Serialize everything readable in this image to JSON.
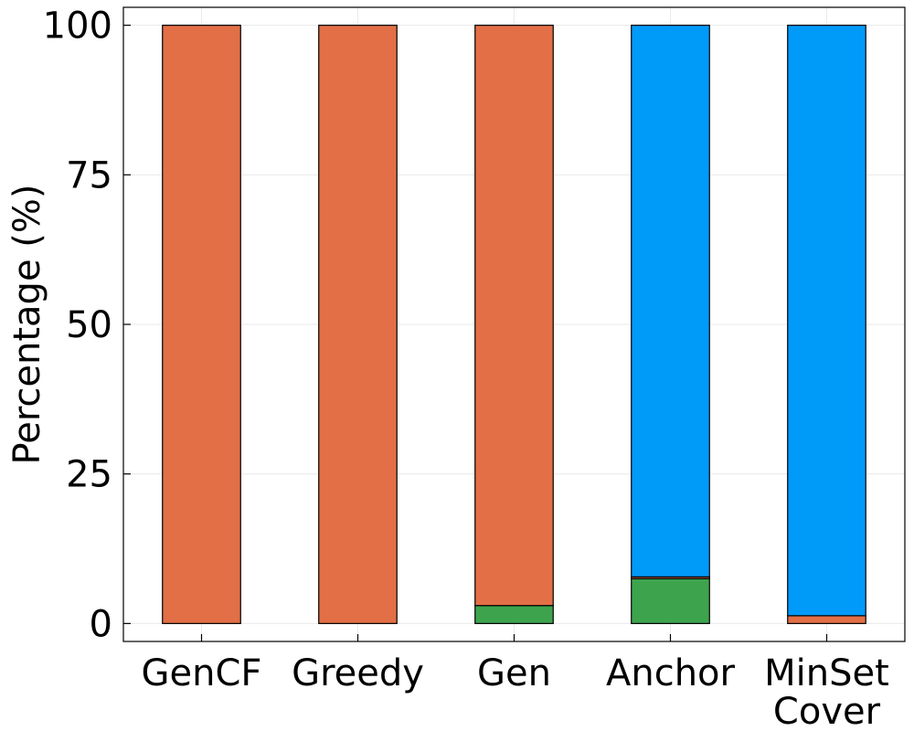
{
  "chart_data": {
    "type": "bar",
    "stacked": true,
    "categories": [
      [
        "GenCF"
      ],
      [
        "Greedy"
      ],
      [
        "Gen"
      ],
      [
        "Anchor"
      ],
      [
        "MinSet",
        "Cover"
      ]
    ],
    "series": [
      {
        "color": "#3da44d",
        "values": [
          0,
          0,
          3.0,
          7.5,
          0
        ]
      },
      {
        "color": "#e26f46",
        "values": [
          100,
          100,
          97.0,
          0.3,
          1.3
        ]
      },
      {
        "color": "#009af9",
        "values": [
          0,
          0,
          0,
          92.2,
          98.7
        ]
      }
    ],
    "title": "",
    "xlabel": "",
    "ylabel": "Percentage (%)",
    "ylim": [
      -3,
      103
    ],
    "yticks": [
      0,
      25,
      50,
      75,
      100
    ],
    "grid": true,
    "legend": "none"
  }
}
